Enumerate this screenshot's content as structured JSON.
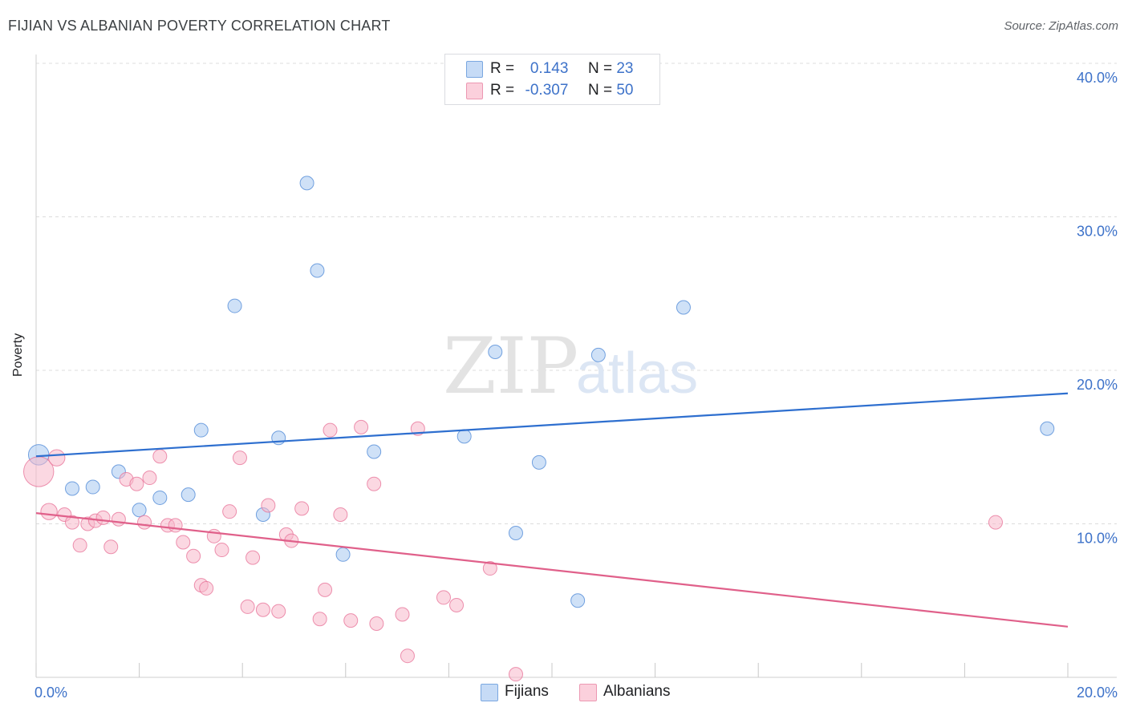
{
  "header": {
    "title": "FIJIAN VS ALBANIAN POVERTY CORRELATION CHART",
    "source": "Source: ZipAtlas.com"
  },
  "watermark": {
    "zip": "ZIP",
    "atlas": "atlas"
  },
  "legend": {
    "fijians": {
      "r_label": "R =",
      "r_value": "0.143",
      "n_label": "N =",
      "n_value": "23",
      "color": "#a8c8f0"
    },
    "albanians": {
      "r_label": "R =",
      "r_value": "-0.307",
      "n_label": "N =",
      "n_value": "50",
      "color": "#f7b8cb"
    }
  },
  "bottom_legend": {
    "fijians": "Fijians",
    "albanians": "Albanians"
  },
  "chart_data": {
    "type": "scatter",
    "title": "FIJIAN VS ALBANIAN POVERTY CORRELATION CHART",
    "xlabel": "",
    "ylabel": "Poverty",
    "xlim": [
      0,
      20
    ],
    "ylim": [
      0,
      40
    ],
    "x_tick_labels": [
      "0.0%",
      "20.0%"
    ],
    "y_tick_labels": [
      "10.0%",
      "20.0%",
      "30.0%",
      "40.0%"
    ],
    "y_ticks": [
      10,
      20,
      30,
      40
    ],
    "grid": true,
    "series": [
      {
        "name": "Fijians",
        "color": "#4a86d6",
        "fill": "#a8c8f0",
        "trend": {
          "x": [
            0,
            20
          ],
          "y": [
            14.4,
            18.5
          ],
          "color": "#2e6fcf"
        },
        "points": [
          [
            0.05,
            14.5,
            1.5
          ],
          [
            0.7,
            12.3,
            1
          ],
          [
            1.1,
            12.4,
            1
          ],
          [
            1.6,
            13.4,
            1
          ],
          [
            2.0,
            10.9,
            1
          ],
          [
            2.4,
            11.7,
            1
          ],
          [
            2.95,
            11.9,
            1
          ],
          [
            3.2,
            16.1,
            1
          ],
          [
            3.85,
            24.2,
            1
          ],
          [
            4.4,
            10.6,
            1
          ],
          [
            4.7,
            15.6,
            1
          ],
          [
            5.25,
            32.2,
            1
          ],
          [
            5.45,
            26.5,
            1
          ],
          [
            5.95,
            8.0,
            1
          ],
          [
            6.55,
            14.7,
            1
          ],
          [
            8.3,
            15.7,
            1
          ],
          [
            8.9,
            21.2,
            1
          ],
          [
            9.3,
            9.4,
            1
          ],
          [
            9.75,
            14.0,
            1
          ],
          [
            10.5,
            5.0,
            1
          ],
          [
            10.9,
            21.0,
            1
          ],
          [
            12.55,
            24.1,
            1
          ],
          [
            19.6,
            16.2,
            1
          ]
        ]
      },
      {
        "name": "Albanians",
        "color": "#e76f95",
        "fill": "#f7b8cb",
        "trend": {
          "x": [
            0,
            20
          ],
          "y": [
            10.7,
            3.3
          ],
          "color": "#e0608a"
        },
        "points": [
          [
            0.05,
            13.4,
            2.2
          ],
          [
            0.4,
            14.3,
            1.2
          ],
          [
            0.25,
            10.8,
            1.2
          ],
          [
            0.55,
            10.6,
            1
          ],
          [
            0.7,
            10.1,
            1
          ],
          [
            0.85,
            8.6,
            1
          ],
          [
            1.0,
            10.0,
            1
          ],
          [
            1.15,
            10.2,
            1
          ],
          [
            1.3,
            10.4,
            1
          ],
          [
            1.45,
            8.5,
            1
          ],
          [
            1.6,
            10.3,
            1
          ],
          [
            1.75,
            12.9,
            1
          ],
          [
            1.95,
            12.6,
            1
          ],
          [
            2.1,
            10.1,
            1
          ],
          [
            2.2,
            13.0,
            1
          ],
          [
            2.4,
            14.4,
            1
          ],
          [
            2.55,
            9.9,
            1
          ],
          [
            2.7,
            9.9,
            1
          ],
          [
            2.85,
            8.8,
            1
          ],
          [
            3.05,
            7.9,
            1
          ],
          [
            3.2,
            6.0,
            1
          ],
          [
            3.3,
            5.8,
            1
          ],
          [
            3.45,
            9.2,
            1
          ],
          [
            3.6,
            8.3,
            1
          ],
          [
            3.75,
            10.8,
            1
          ],
          [
            3.95,
            14.3,
            1
          ],
          [
            4.1,
            4.6,
            1
          ],
          [
            4.2,
            7.8,
            1
          ],
          [
            4.4,
            4.4,
            1
          ],
          [
            4.5,
            11.2,
            1
          ],
          [
            4.7,
            4.3,
            1
          ],
          [
            4.85,
            9.3,
            1
          ],
          [
            4.95,
            8.9,
            1
          ],
          [
            5.15,
            11.0,
            1
          ],
          [
            5.5,
            3.8,
            1
          ],
          [
            5.6,
            5.7,
            1
          ],
          [
            5.7,
            16.1,
            1
          ],
          [
            5.9,
            10.6,
            1
          ],
          [
            6.1,
            3.7,
            1
          ],
          [
            6.3,
            16.3,
            1
          ],
          [
            6.55,
            12.6,
            1
          ],
          [
            6.6,
            3.5,
            1
          ],
          [
            7.1,
            4.1,
            1
          ],
          [
            7.2,
            1.4,
            1
          ],
          [
            7.4,
            16.2,
            1
          ],
          [
            7.9,
            5.2,
            1
          ],
          [
            8.15,
            4.7,
            1
          ],
          [
            8.8,
            7.1,
            1
          ],
          [
            9.3,
            0.2,
            1
          ],
          [
            18.6,
            10.1,
            1
          ]
        ]
      }
    ]
  }
}
